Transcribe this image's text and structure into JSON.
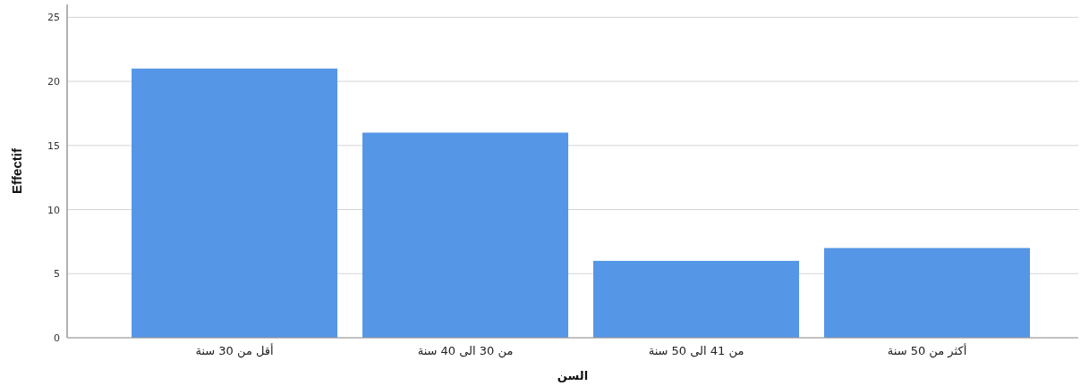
{
  "chart_data": {
    "type": "bar",
    "xlabel": "السن",
    "ylabel": "Effectif",
    "categories": [
      "أقل من 30 سنة",
      "من 30 الى 40 سنة",
      "من 41 الى 50 سنة",
      "أكثر من 50 سنة"
    ],
    "values": [
      21,
      16,
      6,
      7
    ],
    "color": "#5596e6",
    "ylim": [
      0,
      26
    ],
    "yticks": [
      0,
      5,
      10,
      15,
      20,
      25
    ],
    "grid": "y"
  }
}
